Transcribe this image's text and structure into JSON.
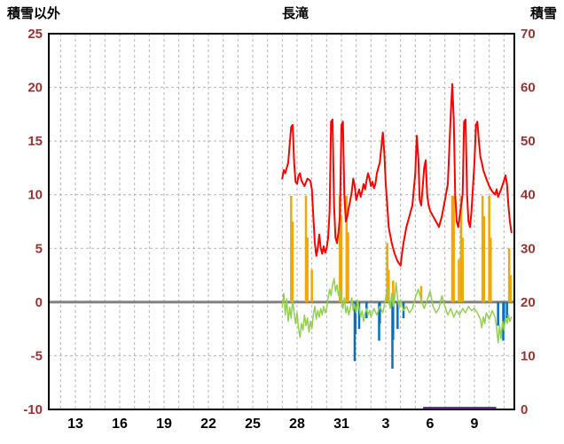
{
  "header": {
    "left_axis_title": "積雪以外",
    "chart_title": "長滝",
    "right_axis_title": "積雪"
  },
  "chart_data": {
    "type": "line",
    "title": "長滝",
    "left_axis": {
      "title": "積雪以外",
      "min": -10,
      "max": 25,
      "tick_step": 5,
      "label_color": "#993333"
    },
    "right_axis": {
      "title": "積雪",
      "min": 0,
      "max": 70,
      "tick_step": 10,
      "label_color": "#993333"
    },
    "x_axis": {
      "min": 11.2,
      "max": 42.7,
      "grid_step_days": 1,
      "label_color": "#000000",
      "ticks": [
        {
          "v": 13,
          "label": "13"
        },
        {
          "v": 16,
          "label": "16"
        },
        {
          "v": 19,
          "label": "19"
        },
        {
          "v": 22,
          "label": "22"
        },
        {
          "v": 25,
          "label": "25"
        },
        {
          "v": 28,
          "label": "28"
        },
        {
          "v": 31,
          "label": "31"
        },
        {
          "v": 34,
          "label": "3"
        },
        {
          "v": 37,
          "label": "6"
        },
        {
          "v": 40,
          "label": "9"
        }
      ]
    },
    "grid": {
      "color": "#b3b3b3",
      "dash": "3 3"
    },
    "zero_line": {
      "color": "#808080",
      "width": 3
    },
    "frame": {
      "color": "#000000",
      "width": 2
    },
    "series": [
      {
        "name": "purple-snow-depth-line",
        "type": "line",
        "axis": "right",
        "color": "#7030a0",
        "width": 3,
        "points": [
          [
            36.6,
            0
          ],
          [
            41.4,
            0
          ]
        ]
      },
      {
        "name": "orange-bars",
        "type": "bar",
        "axis": "left",
        "color": "#f0a800",
        "bar_width": 2.5,
        "points": [
          [
            27.6,
            9.9
          ],
          [
            27.7,
            7.5
          ],
          [
            28.6,
            9.9
          ],
          [
            28.7,
            6.0
          ],
          [
            29.0,
            3.0
          ],
          [
            30.9,
            9.9
          ],
          [
            31.0,
            8.0
          ],
          [
            31.35,
            9.9
          ],
          [
            31.45,
            6.5
          ],
          [
            34.1,
            5.5
          ],
          [
            34.2,
            3.0
          ],
          [
            34.5,
            2.0
          ],
          [
            36.4,
            1.5
          ],
          [
            38.5,
            9.9
          ],
          [
            38.6,
            9.9
          ],
          [
            38.95,
            4.0
          ],
          [
            39.1,
            9.9
          ],
          [
            39.2,
            6.0
          ],
          [
            40.55,
            9.9
          ],
          [
            40.65,
            8.0
          ],
          [
            41.0,
            9.9
          ],
          [
            41.1,
            6.0
          ],
          [
            42.35,
            5.0
          ],
          [
            42.45,
            2.5
          ]
        ]
      },
      {
        "name": "blue-bars",
        "type": "bar",
        "axis": "left",
        "color": "#0070c0",
        "bar_width": 2.5,
        "points": [
          [
            31.9,
            -5.5
          ],
          [
            31.95,
            -3.0
          ],
          [
            32.2,
            -2.5
          ],
          [
            32.7,
            -1.5
          ],
          [
            33.55,
            -3.6
          ],
          [
            33.6,
            -2.0
          ],
          [
            34.45,
            -6.2
          ],
          [
            34.5,
            -3.5
          ],
          [
            34.8,
            -2.5
          ],
          [
            35.2,
            -1.5
          ],
          [
            41.6,
            -2.2
          ],
          [
            41.95,
            -3.6
          ],
          [
            42.0,
            -2.0
          ],
          [
            42.2,
            -1.5
          ]
        ]
      },
      {
        "name": "green-line",
        "type": "line",
        "axis": "left",
        "color": "#92d050",
        "width": 1.5,
        "points": [
          [
            27.0,
            -0.5
          ],
          [
            27.1,
            0.8
          ],
          [
            27.2,
            -1.2
          ],
          [
            27.3,
            0.3
          ],
          [
            27.4,
            -1.8
          ],
          [
            27.5,
            -0.5
          ],
          [
            27.6,
            -1.5
          ],
          [
            27.7,
            0.2
          ],
          [
            27.8,
            -1.0
          ],
          [
            27.9,
            -2.0
          ],
          [
            28.0,
            -1.0
          ],
          [
            28.1,
            -2.5
          ],
          [
            28.2,
            -3.3
          ],
          [
            28.3,
            -2.0
          ],
          [
            28.4,
            -2.6
          ],
          [
            28.5,
            -1.2
          ],
          [
            28.6,
            -2.2
          ],
          [
            28.7,
            -1.5
          ],
          [
            28.8,
            -2.8
          ],
          [
            28.9,
            -1.8
          ],
          [
            29.0,
            -2.5
          ],
          [
            29.1,
            -1.2
          ],
          [
            29.2,
            -0.4
          ],
          [
            29.3,
            -1.6
          ],
          [
            29.4,
            -0.8
          ],
          [
            29.5,
            -1.4
          ],
          [
            29.6,
            -0.6
          ],
          [
            29.7,
            -1.2
          ],
          [
            29.8,
            -0.4
          ],
          [
            29.9,
            -1.0
          ],
          [
            30.0,
            -0.6
          ],
          [
            30.1,
            0.4
          ],
          [
            30.2,
            1.2
          ],
          [
            30.3,
            0.6
          ],
          [
            30.4,
            1.6
          ],
          [
            30.5,
            2.2
          ],
          [
            30.6,
            1.0
          ],
          [
            30.7,
            1.6
          ],
          [
            30.8,
            0.6
          ],
          [
            30.9,
            1.2
          ],
          [
            31.0,
            0.2
          ],
          [
            31.1,
            -0.6
          ],
          [
            31.2,
            0.4
          ],
          [
            31.3,
            -1.0
          ],
          [
            31.4,
            -0.4
          ],
          [
            31.5,
            -1.2
          ],
          [
            31.6,
            -0.6
          ],
          [
            31.7,
            0.4
          ],
          [
            31.8,
            -0.8
          ],
          [
            31.9,
            -0.2
          ],
          [
            32.0,
            -1.0
          ],
          [
            32.1,
            0.2
          ],
          [
            32.2,
            -0.6
          ],
          [
            32.3,
            -1.4
          ],
          [
            32.4,
            -0.8
          ],
          [
            32.5,
            -1.8
          ],
          [
            32.6,
            -1.0
          ],
          [
            32.7,
            -0.6
          ],
          [
            32.8,
            -1.2
          ],
          [
            32.9,
            -0.8
          ],
          [
            33.0,
            -1.4
          ],
          [
            33.2,
            -0.6
          ],
          [
            33.4,
            -1.2
          ],
          [
            33.6,
            -0.4
          ],
          [
            33.8,
            -1.0
          ],
          [
            34.0,
            0.4
          ],
          [
            34.1,
            1.4
          ],
          [
            34.2,
            0.2
          ],
          [
            34.3,
            -0.6
          ],
          [
            34.4,
            0.8
          ],
          [
            34.5,
            -0.4
          ],
          [
            34.6,
            0.4
          ],
          [
            34.7,
            1.8
          ],
          [
            34.8,
            0.4
          ],
          [
            34.9,
            -0.6
          ],
          [
            35.0,
            0.2
          ],
          [
            35.2,
            -0.8
          ],
          [
            35.4,
            -0.4
          ],
          [
            35.6,
            -1.0
          ],
          [
            35.8,
            -0.6
          ],
          [
            36.0,
            0.4
          ],
          [
            36.2,
            1.2
          ],
          [
            36.4,
            0.2
          ],
          [
            36.6,
            -0.6
          ],
          [
            36.8,
            0.2
          ],
          [
            37.0,
            1.0
          ],
          [
            37.2,
            -0.4
          ],
          [
            37.4,
            -1.0
          ],
          [
            37.6,
            -0.6
          ],
          [
            37.8,
            0.6
          ],
          [
            38.0,
            -0.4
          ],
          [
            38.2,
            -1.2
          ],
          [
            38.4,
            -0.6
          ],
          [
            38.6,
            -1.4
          ],
          [
            38.8,
            -0.8
          ],
          [
            39.0,
            -1.2
          ],
          [
            39.2,
            -0.6
          ],
          [
            39.4,
            -1.0
          ],
          [
            39.6,
            -0.4
          ],
          [
            39.8,
            -0.8
          ],
          [
            40.0,
            -0.6
          ],
          [
            40.2,
            -1.0
          ],
          [
            40.4,
            -1.6
          ],
          [
            40.5,
            -2.4
          ],
          [
            40.6,
            -1.4
          ],
          [
            40.7,
            -2.0
          ],
          [
            40.8,
            -1.0
          ],
          [
            41.0,
            -1.6
          ],
          [
            41.2,
            -0.8
          ],
          [
            41.4,
            -1.4
          ],
          [
            41.5,
            -2.4
          ],
          [
            41.6,
            -3.8
          ],
          [
            41.7,
            -2.2
          ],
          [
            41.8,
            -3.4
          ],
          [
            41.9,
            -1.8
          ],
          [
            42.0,
            -2.6
          ],
          [
            42.1,
            -1.4
          ],
          [
            42.2,
            -2.0
          ],
          [
            42.3,
            -1.2
          ],
          [
            42.4,
            -1.8
          ],
          [
            42.5,
            -1.4
          ]
        ]
      },
      {
        "name": "red-line",
        "type": "line",
        "axis": "left",
        "color": "#ff0000",
        "width": 2,
        "points": [
          [
            27.0,
            11.5
          ],
          [
            27.1,
            12.3
          ],
          [
            27.2,
            12.0
          ],
          [
            27.4,
            13.0
          ],
          [
            27.6,
            16.3
          ],
          [
            27.7,
            16.5
          ],
          [
            27.8,
            13.0
          ],
          [
            27.9,
            11.2
          ],
          [
            28.0,
            11.0
          ],
          [
            28.1,
            11.8
          ],
          [
            28.2,
            12.0
          ],
          [
            28.3,
            11.3
          ],
          [
            28.5,
            10.8
          ],
          [
            28.7,
            11.5
          ],
          [
            28.9,
            11.3
          ],
          [
            29.0,
            10.5
          ],
          [
            29.1,
            8.0
          ],
          [
            29.2,
            5.5
          ],
          [
            29.3,
            4.3
          ],
          [
            29.4,
            5.0
          ],
          [
            29.5,
            6.3
          ],
          [
            29.6,
            5.0
          ],
          [
            29.7,
            4.5
          ],
          [
            29.8,
            5.2
          ],
          [
            29.9,
            4.6
          ],
          [
            30.0,
            5.0
          ],
          [
            30.1,
            6.0
          ],
          [
            30.2,
            8.5
          ],
          [
            30.3,
            16.8
          ],
          [
            30.4,
            17.0
          ],
          [
            30.5,
            9.0
          ],
          [
            30.6,
            6.0
          ],
          [
            30.7,
            5.5
          ],
          [
            30.8,
            6.5
          ],
          [
            30.9,
            8.0
          ],
          [
            31.0,
            16.5
          ],
          [
            31.1,
            16.8
          ],
          [
            31.2,
            10.0
          ],
          [
            31.3,
            7.5
          ],
          [
            31.4,
            8.0
          ],
          [
            31.5,
            8.8
          ],
          [
            31.6,
            9.5
          ],
          [
            31.7,
            10.3
          ],
          [
            31.8,
            11.5
          ],
          [
            31.9,
            10.8
          ],
          [
            32.0,
            9.5
          ],
          [
            32.1,
            10.0
          ],
          [
            32.2,
            10.5
          ],
          [
            32.3,
            9.8
          ],
          [
            32.4,
            10.3
          ],
          [
            32.5,
            11.0
          ],
          [
            32.6,
            10.5
          ],
          [
            32.7,
            11.3
          ],
          [
            32.8,
            12.0
          ],
          [
            32.9,
            11.5
          ],
          [
            33.0,
            10.8
          ],
          [
            33.1,
            11.2
          ],
          [
            33.2,
            10.6
          ],
          [
            33.3,
            11.0
          ],
          [
            33.4,
            12.0
          ],
          [
            33.6,
            13.0
          ],
          [
            33.8,
            15.8
          ],
          [
            33.9,
            14.0
          ],
          [
            34.0,
            11.0
          ],
          [
            34.1,
            9.0
          ],
          [
            34.2,
            7.0
          ],
          [
            34.4,
            5.5
          ],
          [
            34.6,
            4.5
          ],
          [
            34.8,
            3.8
          ],
          [
            35.0,
            3.4
          ],
          [
            35.1,
            4.5
          ],
          [
            35.2,
            5.5
          ],
          [
            35.4,
            7.0
          ],
          [
            35.6,
            8.0
          ],
          [
            35.8,
            9.0
          ],
          [
            36.0,
            12.0
          ],
          [
            36.1,
            15.5
          ],
          [
            36.2,
            13.5
          ],
          [
            36.3,
            9.5
          ],
          [
            36.4,
            9.0
          ],
          [
            36.6,
            12.5
          ],
          [
            36.7,
            13.2
          ],
          [
            36.8,
            10.0
          ],
          [
            36.9,
            9.0
          ],
          [
            37.0,
            8.5
          ],
          [
            37.2,
            8.0
          ],
          [
            37.4,
            7.5
          ],
          [
            37.6,
            7.0
          ],
          [
            37.8,
            8.0
          ],
          [
            38.0,
            9.5
          ],
          [
            38.2,
            11.0
          ],
          [
            38.4,
            17.5
          ],
          [
            38.5,
            20.3
          ],
          [
            38.6,
            17.0
          ],
          [
            38.7,
            10.0
          ],
          [
            38.8,
            7.5
          ],
          [
            38.9,
            7.0
          ],
          [
            39.0,
            8.0
          ],
          [
            39.2,
            10.0
          ],
          [
            39.3,
            16.8
          ],
          [
            39.4,
            17.0
          ],
          [
            39.5,
            10.0
          ],
          [
            39.6,
            7.5
          ],
          [
            39.7,
            7.0
          ],
          [
            39.8,
            8.5
          ],
          [
            40.0,
            13.0
          ],
          [
            40.1,
            16.5
          ],
          [
            40.2,
            16.8
          ],
          [
            40.3,
            15.0
          ],
          [
            40.4,
            13.5
          ],
          [
            40.5,
            13.0
          ],
          [
            40.6,
            12.3
          ],
          [
            40.8,
            11.5
          ],
          [
            41.0,
            10.8
          ],
          [
            41.2,
            10.3
          ],
          [
            41.4,
            10.0
          ],
          [
            41.5,
            10.5
          ],
          [
            41.6,
            9.8
          ],
          [
            41.8,
            10.5
          ],
          [
            42.0,
            11.3
          ],
          [
            42.1,
            11.8
          ],
          [
            42.2,
            11.0
          ],
          [
            42.3,
            9.0
          ],
          [
            42.4,
            7.5
          ],
          [
            42.5,
            6.5
          ]
        ]
      }
    ]
  }
}
